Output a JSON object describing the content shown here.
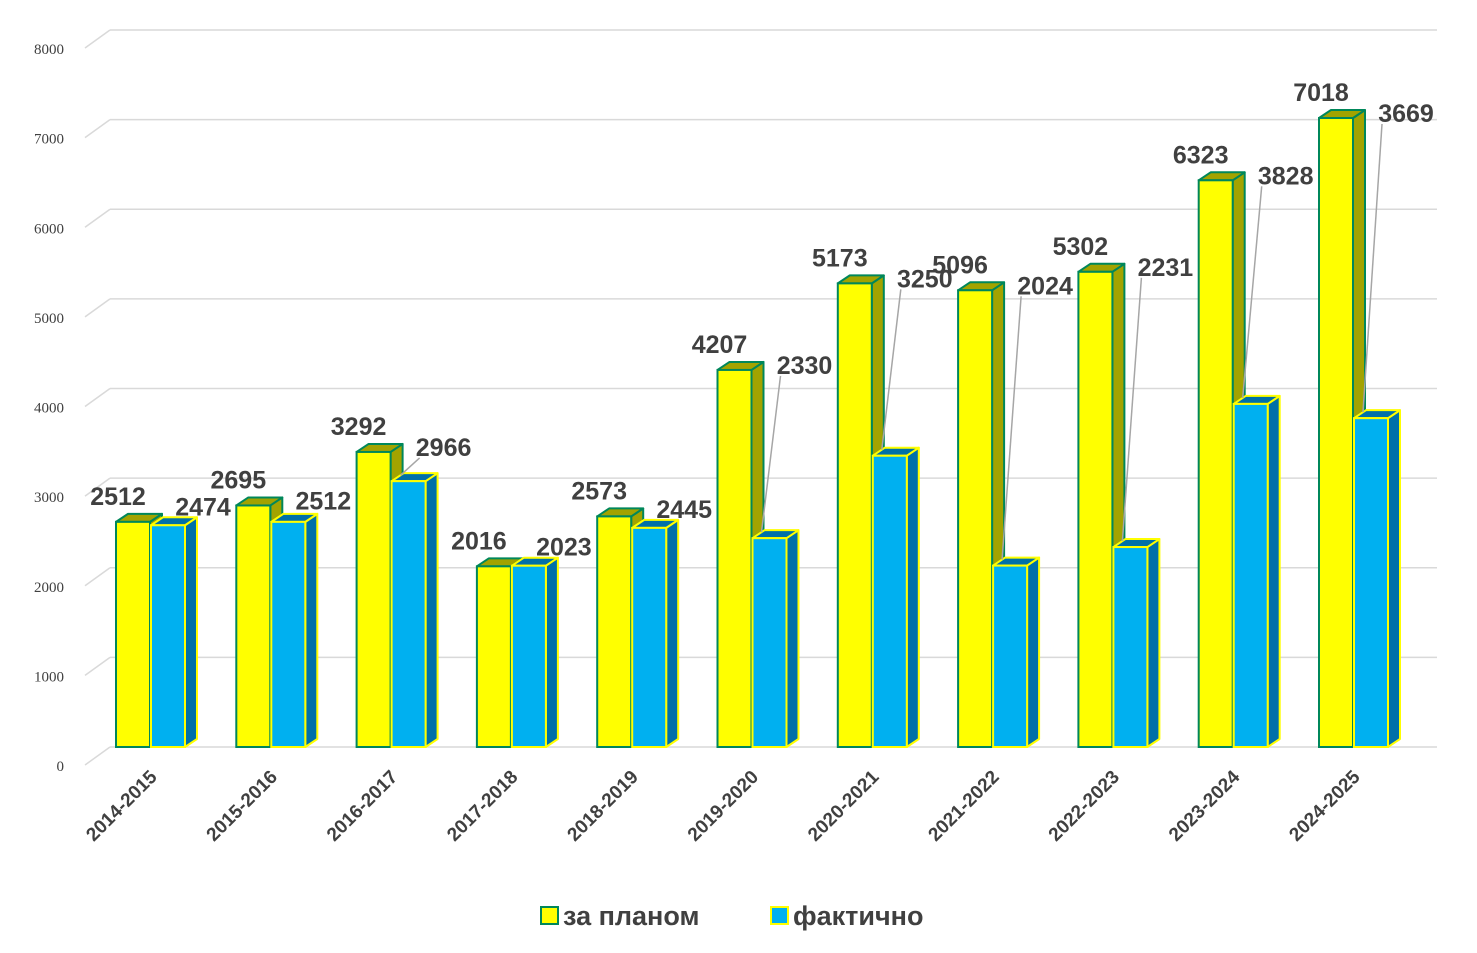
{
  "chart_data": {
    "type": "bar",
    "categories": [
      "2014-2015",
      "2015-2016",
      "2016-2017",
      "2017-2018",
      "2018-2019",
      "2019-2020",
      "2020-2021",
      "2021-2022",
      "2022-2023",
      "2023-2024",
      "2024-2025"
    ],
    "series": [
      {
        "name": "за планом",
        "values": [
          2512,
          2695,
          3292,
          2016,
          2573,
          4207,
          5173,
          5096,
          5302,
          6323,
          7018
        ],
        "color": "#ffff00",
        "side_color": "#a3a300",
        "edge_color": "#00875a"
      },
      {
        "name": "фактично",
        "values": [
          2474,
          2512,
          2966,
          2023,
          2445,
          2330,
          3250,
          2024,
          2231,
          3828,
          3669
        ],
        "color": "#00b0f0",
        "side_color": "#0070a8",
        "edge_color": "#ffff00"
      }
    ],
    "ylim": [
      0,
      8000
    ],
    "yticks": [
      0,
      1000,
      2000,
      3000,
      4000,
      5000,
      6000,
      7000,
      8000
    ],
    "grid": true,
    "legend_position": "bottom",
    "three_d": true
  }
}
